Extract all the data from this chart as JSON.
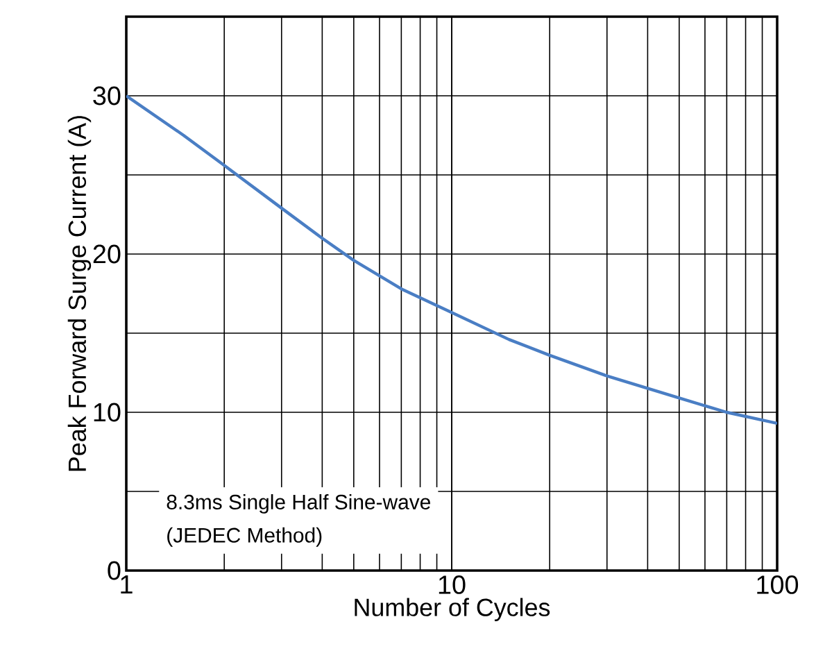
{
  "chart_data": {
    "type": "line",
    "xlabel": "Number of Cycles",
    "ylabel": "Peak Forward Surge Current (A)",
    "log": "x",
    "xlim": [
      1,
      100
    ],
    "xticks": [
      1,
      10,
      100
    ],
    "ylim": [
      0,
      35
    ],
    "yticks": [
      0,
      {
        "value": 5,
        "label": null
      },
      10,
      {
        "value": 15,
        "label": null
      },
      20,
      {
        "value": 25,
        "label": null
      },
      30
    ],
    "grid": true,
    "marker": "none",
    "line_style": "solid",
    "annotations": [
      "8.3ms Single Half Sine-wave",
      "(JEDEC Method)"
    ],
    "series": [
      {
        "color": "#4a7ec4",
        "x": [
          1,
          1.5,
          2,
          3,
          4,
          5,
          7,
          10,
          15,
          20,
          30,
          50,
          70,
          100
        ],
        "values": [
          30,
          27.5,
          25.6,
          22.9,
          21,
          19.6,
          17.8,
          16.3,
          14.6,
          13.6,
          12.3,
          10.9,
          10,
          9.3
        ]
      }
    ]
  }
}
